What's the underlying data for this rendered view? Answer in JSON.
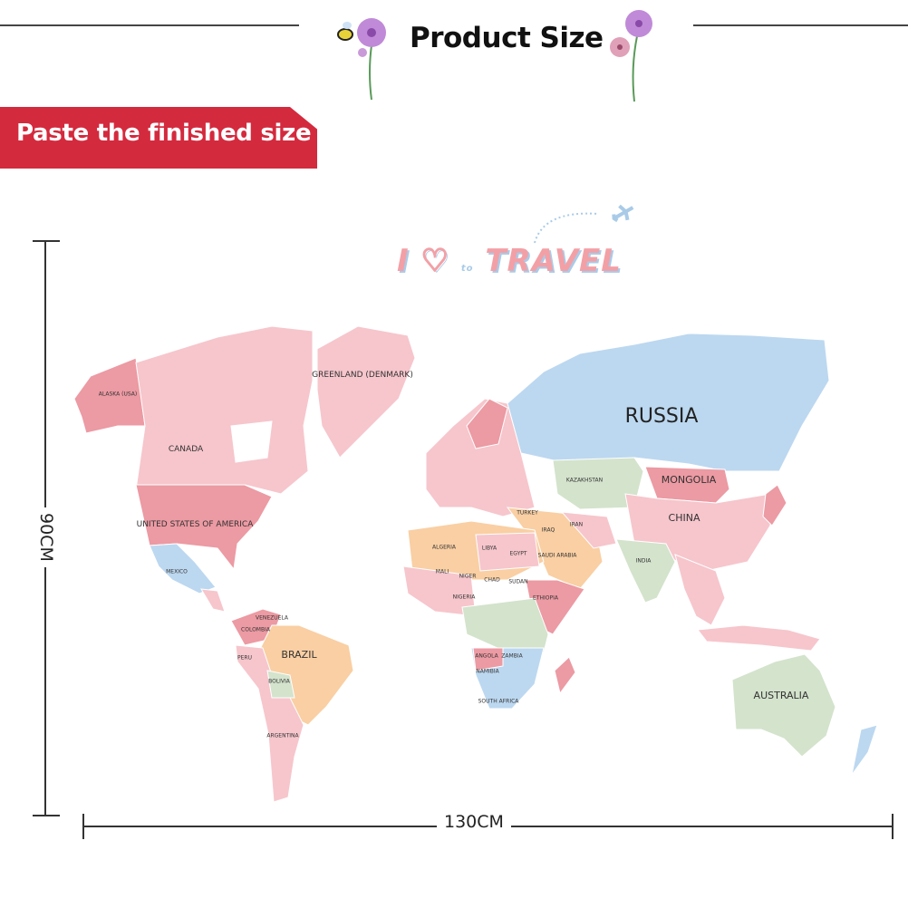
{
  "header": {
    "title": "Product Size"
  },
  "banner": {
    "text": "Paste the finished size"
  },
  "dimensions": {
    "height": "90CM",
    "width": "130CM"
  },
  "decor": {
    "slogan_i": "I",
    "slogan_to": "to",
    "slogan_travel": "TRAVEL",
    "icons": [
      "bee-icon",
      "flower-icon",
      "airplane-icon",
      "heart-icon"
    ]
  },
  "colors": {
    "pink": "#f6c6cc",
    "rose": "#ec9aa3",
    "blue": "#bcd8f0",
    "peach": "#f9cfa3",
    "green": "#d4e3cc",
    "banner": "#d42a3e"
  },
  "map": {
    "labels": [
      {
        "name": "ALASKA (USA)",
        "size": "s"
      },
      {
        "name": "CANADA",
        "size": "m"
      },
      {
        "name": "GREENLAND (DENMARK)",
        "size": "m"
      },
      {
        "name": "UNITED STATES OF AMERICA",
        "size": "m"
      },
      {
        "name": "MEXICO",
        "size": "s"
      },
      {
        "name": "VENEZUELA",
        "size": "s"
      },
      {
        "name": "COLOMBIA",
        "size": "s"
      },
      {
        "name": "PERU",
        "size": "s"
      },
      {
        "name": "BRAZIL",
        "size": "l"
      },
      {
        "name": "BOLIVIA",
        "size": "s"
      },
      {
        "name": "ARGENTINA",
        "size": "s"
      },
      {
        "name": "ALGERIA",
        "size": "s"
      },
      {
        "name": "LIBYA",
        "size": "s"
      },
      {
        "name": "EGYPT",
        "size": "s"
      },
      {
        "name": "MALI",
        "size": "s"
      },
      {
        "name": "NIGER",
        "size": "s"
      },
      {
        "name": "CHAD",
        "size": "s"
      },
      {
        "name": "SUDAN",
        "size": "s"
      },
      {
        "name": "ETHIOPIA",
        "size": "s"
      },
      {
        "name": "NIGERIA",
        "size": "s"
      },
      {
        "name": "ANGOLA",
        "size": "s"
      },
      {
        "name": "ZAMBIA",
        "size": "s"
      },
      {
        "name": "NAMIBIA",
        "size": "s"
      },
      {
        "name": "SOUTH AFRICA",
        "size": "s"
      },
      {
        "name": "TURKEY",
        "size": "s"
      },
      {
        "name": "IRAN",
        "size": "s"
      },
      {
        "name": "IRAQ",
        "size": "s"
      },
      {
        "name": "SAUDI ARABIA",
        "size": "s"
      },
      {
        "name": "RUSSIA",
        "size": "b"
      },
      {
        "name": "KAZAKHSTAN",
        "size": "s"
      },
      {
        "name": "MONGOLIA",
        "size": "l"
      },
      {
        "name": "CHINA",
        "size": "l"
      },
      {
        "name": "INDIA",
        "size": "s"
      },
      {
        "name": "AUSTRALIA",
        "size": "l"
      }
    ]
  }
}
